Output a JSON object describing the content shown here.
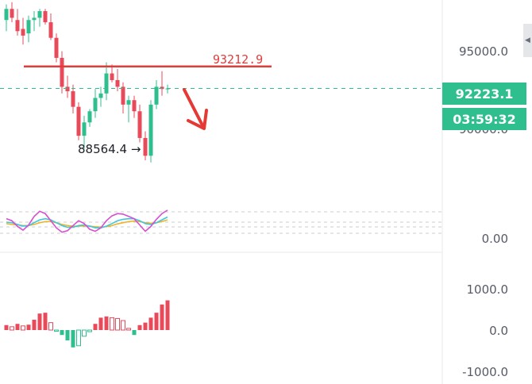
{
  "price_axis": {
    "label_95000": "95000.0",
    "label_hidden": "90000.0"
  },
  "last_price": {
    "value": "92223.1",
    "color": "#2fbf8f"
  },
  "countdown": {
    "value": "03:59:32",
    "color": "#2fbf8f"
  },
  "annotations": {
    "resistance_label": "93212.9",
    "resistance_color": "#e23b3b",
    "low_label": "88564.4",
    "low_arrow": "→"
  },
  "kdj_axis": {
    "label": "0.00"
  },
  "macd_axis": {
    "top": "1000.0",
    "mid": "0.0",
    "bottom": "-1000.0"
  },
  "scroll": {
    "icon": "chevron-left-icon",
    "glyph": "◀"
  },
  "colors": {
    "up": "#2fbf8f",
    "down": "#e84a5a",
    "k_line": "#d64fd0",
    "d_line": "#f0b429",
    "j_line": "#3ec7e0"
  },
  "chart_data": {
    "type": "candlestick",
    "price_range": [
      88000,
      96200
    ],
    "candles": [
      {
        "o": 95300,
        "h": 96000,
        "l": 94800,
        "c": 95800
      },
      {
        "o": 95800,
        "h": 96100,
        "l": 95200,
        "c": 95400
      },
      {
        "o": 95300,
        "h": 95800,
        "l": 94600,
        "c": 94800
      },
      {
        "o": 94900,
        "h": 95400,
        "l": 94200,
        "c": 94600
      },
      {
        "o": 94700,
        "h": 95500,
        "l": 94300,
        "c": 95300
      },
      {
        "o": 95300,
        "h": 95700,
        "l": 94800,
        "c": 95400
      },
      {
        "o": 95400,
        "h": 95800,
        "l": 95000,
        "c": 95700
      },
      {
        "o": 95700,
        "h": 95800,
        "l": 95100,
        "c": 95200
      },
      {
        "o": 95200,
        "h": 95600,
        "l": 94400,
        "c": 94500
      },
      {
        "o": 94500,
        "h": 94700,
        "l": 93400,
        "c": 93600
      },
      {
        "o": 93600,
        "h": 93900,
        "l": 92000,
        "c": 92300
      },
      {
        "o": 92300,
        "h": 92800,
        "l": 91800,
        "c": 92100
      },
      {
        "o": 92100,
        "h": 92400,
        "l": 91100,
        "c": 91400
      },
      {
        "o": 91400,
        "h": 91600,
        "l": 89900,
        "c": 90100
      },
      {
        "o": 90100,
        "h": 91000,
        "l": 89500,
        "c": 90700
      },
      {
        "o": 90700,
        "h": 91300,
        "l": 90500,
        "c": 91200
      },
      {
        "o": 91200,
        "h": 92200,
        "l": 90900,
        "c": 91800
      },
      {
        "o": 91800,
        "h": 92300,
        "l": 91400,
        "c": 92000
      },
      {
        "o": 92000,
        "h": 93400,
        "l": 91700,
        "c": 92900
      },
      {
        "o": 92900,
        "h": 93300,
        "l": 92500,
        "c": 92600
      },
      {
        "o": 92600,
        "h": 93100,
        "l": 92100,
        "c": 92300
      },
      {
        "o": 92300,
        "h": 92500,
        "l": 91100,
        "c": 91500
      },
      {
        "o": 91500,
        "h": 91900,
        "l": 90700,
        "c": 91700
      },
      {
        "o": 91700,
        "h": 91900,
        "l": 90900,
        "c": 91200
      },
      {
        "o": 91200,
        "h": 91500,
        "l": 89800,
        "c": 90000
      },
      {
        "o": 90000,
        "h": 90300,
        "l": 89000,
        "c": 89200
      },
      {
        "o": 89200,
        "h": 91700,
        "l": 88900,
        "c": 91500
      },
      {
        "o": 91500,
        "h": 92600,
        "l": 91300,
        "c": 92300
      },
      {
        "o": 92300,
        "h": 93000,
        "l": 91900,
        "c": 92200
      },
      {
        "o": 92200,
        "h": 92400,
        "l": 92000,
        "c": 92223
      }
    ],
    "resistance_level": 93212.9,
    "low_level": 88564.4,
    "current_price": 92223.1,
    "kdj": {
      "range": [
        0,
        100
      ],
      "k": [
        62,
        55,
        35,
        22,
        40,
        70,
        88,
        80,
        55,
        30,
        15,
        20,
        38,
        55,
        45,
        25,
        18,
        30,
        55,
        72,
        80,
        78,
        70,
        62,
        40,
        18,
        35,
        60,
        80,
        92
      ],
      "d": [
        50,
        48,
        42,
        36,
        38,
        48,
        58,
        62,
        58,
        48,
        38,
        32,
        32,
        38,
        40,
        36,
        30,
        30,
        36,
        45,
        55,
        60,
        62,
        62,
        55,
        45,
        42,
        48,
        58,
        68
      ],
      "j": [
        45,
        42,
        40,
        38,
        38,
        42,
        48,
        52,
        52,
        48,
        42,
        38,
        36,
        36,
        37,
        36,
        34,
        33,
        34,
        38,
        44,
        48,
        52,
        54,
        52,
        48,
        46,
        48,
        52,
        58
      ]
    },
    "macd": {
      "range": [
        -1000,
        1000
      ],
      "hist": [
        120,
        80,
        150,
        100,
        130,
        250,
        400,
        420,
        180,
        -30,
        -120,
        -250,
        -420,
        -380,
        -150,
        -40,
        150,
        300,
        330,
        300,
        280,
        230,
        40,
        -120,
        120,
        180,
        300,
        420,
        620,
        720
      ]
    }
  }
}
